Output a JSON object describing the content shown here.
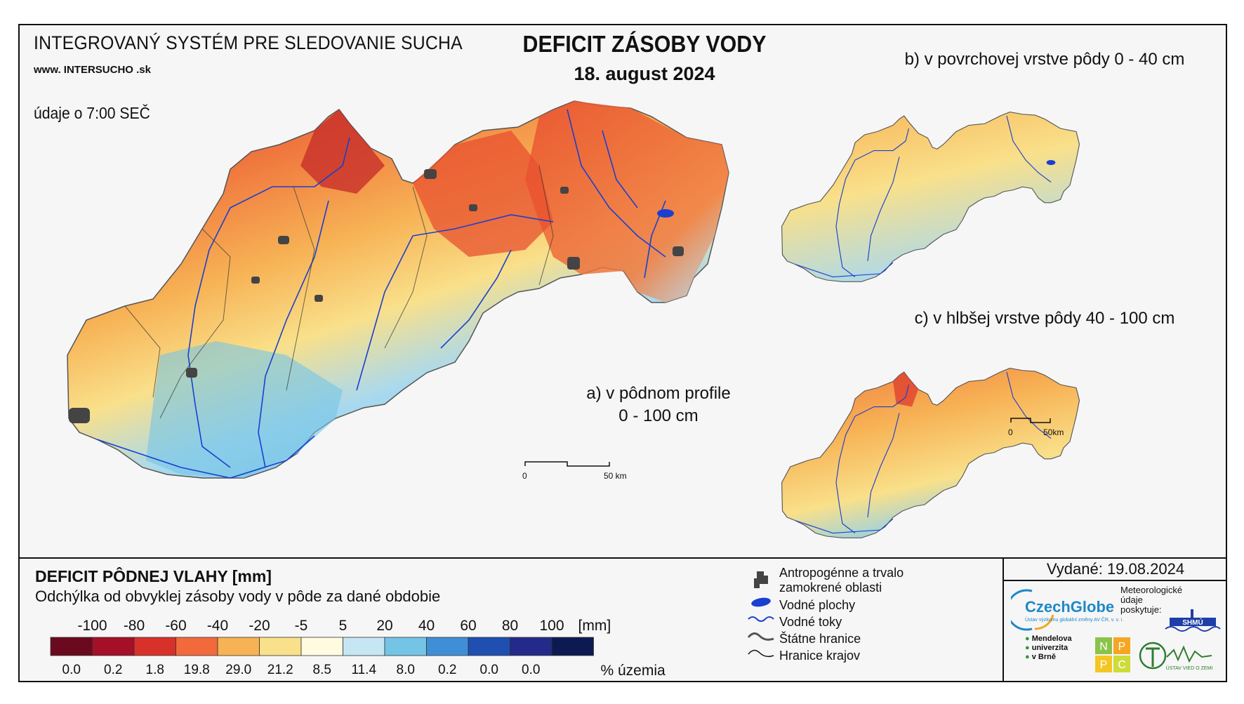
{
  "header": {
    "system_title": "INTEGROVANÝ SYSTÉM PRE SLEDOVANIE SUCHA",
    "url": "www. INTERSUCHO .sk",
    "time_note": "údaje o 7:00 SEČ",
    "main_title": "DEFICIT ZÁSOBY VODY",
    "date": "18. august 2024"
  },
  "maps": {
    "main_label_line1": "a) v pôdnom profile",
    "main_label_line2": "0 - 100 cm",
    "inset_b_label": "b) v povrchovej vrstve pôdy 0 - 40 cm",
    "inset_c_label": "c) v hlbšej vrstve pôdy 40 - 100 cm",
    "scale_main": {
      "start": "0",
      "end": "50 km"
    },
    "scale_inset": {
      "start": "0",
      "end": "50km"
    }
  },
  "legend": {
    "title": "DEFICIT PÔDNEJ VLAHY [mm]",
    "subtitle": "Odchýlka od obvyklej zásoby vody v pôde za dané obdobie",
    "thresholds": [
      "-100",
      "-80",
      "-60",
      "-40",
      "-20",
      "-5",
      "5",
      "20",
      "40",
      "60",
      "80",
      "100"
    ],
    "unit": "[mm]",
    "colors": [
      "#6b0a1e",
      "#a50f28",
      "#d7312a",
      "#f26a3b",
      "#f7b255",
      "#f9e08a",
      "#fffbe0",
      "#c6e6f4",
      "#74c4e6",
      "#3f8fd6",
      "#1f4fb0",
      "#232a8a",
      "#0d1a52"
    ],
    "percentages": [
      "0.0",
      "0.2",
      "1.8",
      "19.8",
      "29.0",
      "21.2",
      "8.5",
      "11.4",
      "8.0",
      "0.2",
      "0.0",
      "0.0"
    ],
    "percent_label": "% územia"
  },
  "map_legend": {
    "urban": "Antropogénne a trvalo zamokrené oblasti",
    "water_bodies": "Vodné plochy",
    "rivers": "Vodné toky",
    "state_border": "Štátne hranice",
    "region_border": "Hranice krajov"
  },
  "issuer": {
    "issued": "Vydané: 19.08.2024",
    "czechglobe": "CzechGlobe",
    "czechglobe_sub": "Ústav výzkumu globální změny AV ČR, v. v. i.",
    "meteo_line1": "Meteorologické",
    "meteo_line2": "údaje",
    "meteo_line3": "poskytuje:",
    "shmu": "SHMÚ",
    "mendel_line1": "Mendelova",
    "mendel_line2": "univerzita",
    "mendel_line3": "v Brně",
    "nppc": [
      "N",
      "P",
      "P",
      "C"
    ],
    "uvz": "ÚSTAV VIED O ZEMI"
  }
}
